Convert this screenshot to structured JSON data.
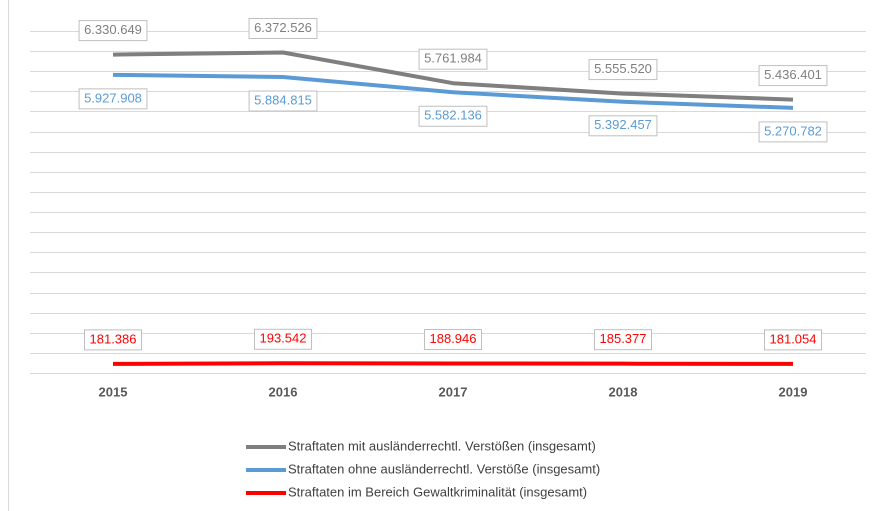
{
  "chart_data": {
    "type": "line",
    "categories": [
      "2015",
      "2016",
      "2017",
      "2018",
      "2019"
    ],
    "series": [
      {
        "name": "Straftaten mit ausländerrechtl. Verstößen (insgesamt)",
        "color": "#7f7f7f",
        "values": [
          6330649,
          6372526,
          5761984,
          5555520,
          5436401
        ],
        "value_labels": [
          "6.330.649",
          "6.372.526",
          "5.761.984",
          "5.555.520",
          "5.436.401"
        ]
      },
      {
        "name": "Straftaten ohne ausländerrechtl. Verstöße (insgesamt)",
        "color": "#5b9bd5",
        "values": [
          5927908,
          5884815,
          5582136,
          5392457,
          5270782
        ],
        "value_labels": [
          "5.927.908",
          "5.884.815",
          "5.582.136",
          "5.392.457",
          "5.270.782"
        ]
      },
      {
        "name": "Straftaten im Bereich Gewaltkriminalität (insgesamt)",
        "color": "#ff0000",
        "values": [
          181386,
          193542,
          188946,
          185377,
          181054
        ],
        "value_labels": [
          "181.386",
          "193.542",
          "188.946",
          "185.377",
          "181.054"
        ]
      }
    ],
    "ylim": [
      0,
      6800000
    ],
    "yticks": [
      0,
      400000,
      800000,
      1200000,
      1600000,
      2000000,
      2400000,
      2800000,
      3200000,
      3600000,
      4000000,
      4400000,
      4800000,
      5200000,
      5600000,
      6000000,
      6400000,
      6800000
    ],
    "grid": true
  }
}
